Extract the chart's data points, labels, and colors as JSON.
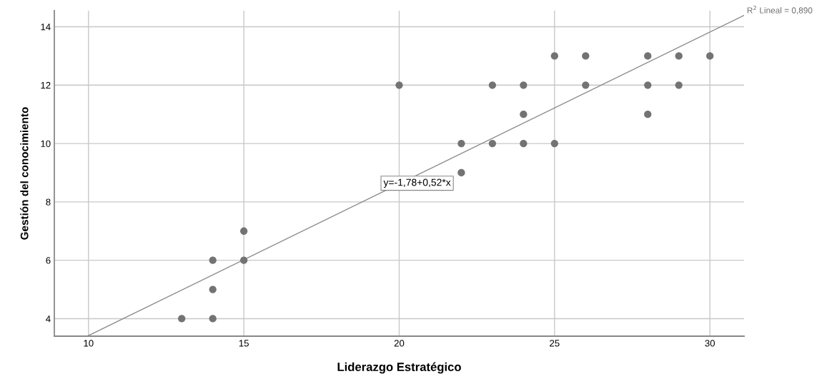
{
  "chart_data": {
    "type": "scatter",
    "xlabel": "Liderazgo Estratégico",
    "ylabel": "Gestión del conocimiento",
    "xlim": [
      8.9,
      31.1
    ],
    "ylim": [
      3.4,
      14.55
    ],
    "xticks": [
      10,
      15,
      20,
      25,
      30
    ],
    "yticks": [
      4,
      6,
      8,
      10,
      12,
      14
    ],
    "grid": true,
    "marker": "circle",
    "series": [
      {
        "color": "#737373",
        "x": [
          13,
          14,
          14,
          14,
          15,
          15,
          20,
          22,
          22,
          23,
          23,
          24,
          24,
          24,
          25,
          25,
          26,
          26,
          28,
          28,
          28,
          29,
          29,
          30
        ],
        "values": [
          4,
          4,
          5,
          6,
          6,
          7,
          12,
          10,
          9,
          12,
          10,
          12,
          11,
          10,
          13,
          10,
          13,
          12,
          13,
          12,
          11,
          13,
          12,
          13
        ]
      },
      {
        "type": "line",
        "marker": "none",
        "color": "#8c8c8c",
        "x": [
          10,
          31.1
        ],
        "values": [
          3.42,
          14.39
        ]
      }
    ],
    "annotations": [
      "y=-1,78+0,52*x",
      "R$^{2}$ Lineal = 0,890"
    ]
  }
}
